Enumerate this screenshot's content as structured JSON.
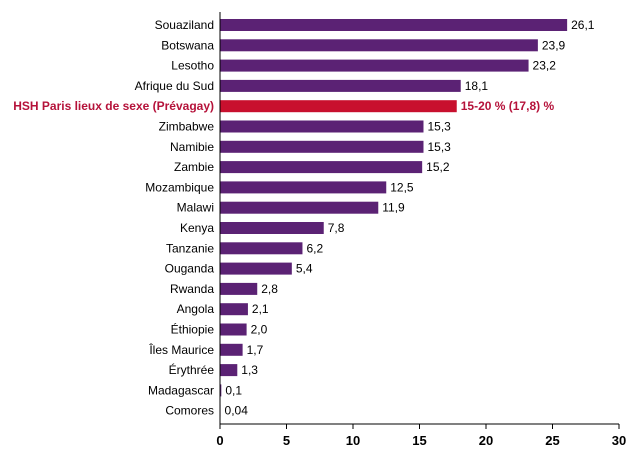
{
  "chart_data": {
    "type": "bar",
    "orientation": "horizontal",
    "categories": [
      "Souaziland",
      "Botswana",
      "Lesotho",
      "Afrique du Sud",
      "HSH Paris lieux de sexe (Prévagay)",
      "Zimbabwe",
      "Namibie",
      "Zambie",
      "Mozambique",
      "Malawi",
      "Kenya",
      "Tanzanie",
      "Ouganda",
      "Rwanda",
      "Angola",
      "Éthiopie",
      "Îles Maurice",
      "Érythrée",
      "Madagascar",
      "Comores"
    ],
    "values": [
      26.1,
      23.9,
      23.2,
      18.1,
      17.8,
      15.3,
      15.3,
      15.2,
      12.5,
      11.9,
      7.8,
      6.2,
      5.4,
      2.8,
      2.1,
      2.0,
      1.7,
      1.3,
      0.1,
      0.04
    ],
    "value_labels": [
      "26,1",
      "23,9",
      "23,2",
      "18,1",
      "15-20 % (17,8) %",
      "15,3",
      "15,3",
      "15,2",
      "12,5",
      "11,9",
      "7,8",
      "6,2",
      "5,4",
      "2,8",
      "2,1",
      "2,0",
      "1,7",
      "1,3",
      "0,1",
      "0,04"
    ],
    "highlight_index": 4,
    "xlim": [
      0,
      30
    ],
    "xticks": [
      0,
      5,
      10,
      15,
      20,
      25,
      30
    ],
    "xtick_labels": [
      "0",
      "5",
      "10",
      "15",
      "20",
      "25",
      "30"
    ],
    "title": "",
    "xlabel": "",
    "ylabel": "",
    "grid": false,
    "legend": "none",
    "colors": {
      "bar": "#5b2274",
      "highlight_bar": "#c8102e",
      "highlight_text": "#b5123a",
      "text": "#000000",
      "axis": "#000000"
    }
  }
}
